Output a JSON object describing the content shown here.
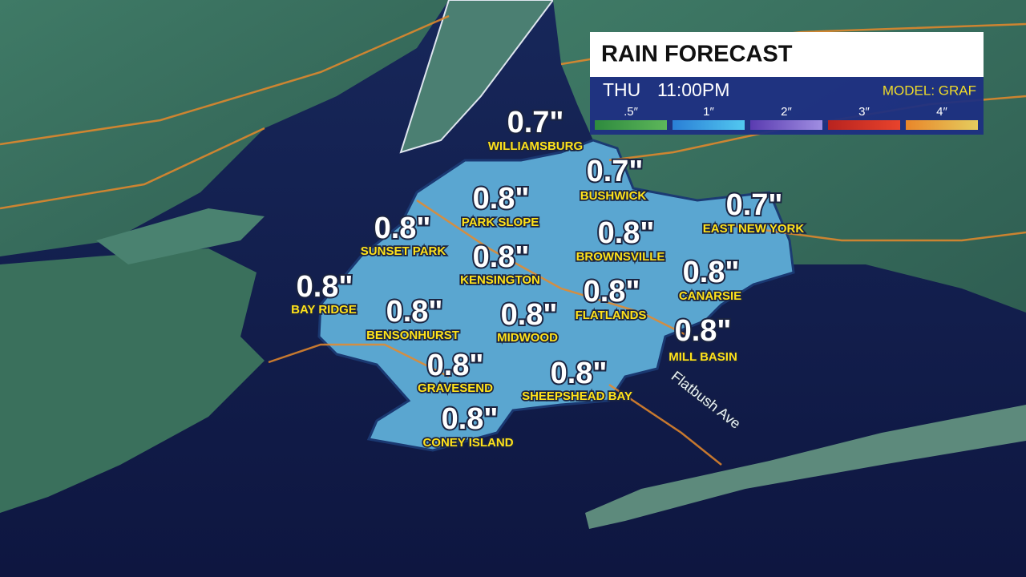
{
  "header": {
    "title": "RAIN FORECAST",
    "day": "THU",
    "time": "11:00PM",
    "model": "MODEL: GRAF"
  },
  "legend": [
    {
      "label": ".5″",
      "colors": [
        "#2e8a3e",
        "#5db75a"
      ]
    },
    {
      "label": "1″",
      "colors": [
        "#2a7fd6",
        "#52c8f0"
      ]
    },
    {
      "label": "2″",
      "colors": [
        "#5a3bb0",
        "#a08ee2"
      ]
    },
    {
      "label": "3″",
      "colors": [
        "#b8231f",
        "#e8432c"
      ]
    },
    {
      "label": "4″",
      "colors": [
        "#e8862a",
        "#e6cd5e"
      ]
    }
  ],
  "locations": [
    {
      "name": "WILLIAMSBURG",
      "amount": "0.7\""
    },
    {
      "name": "BUSHWICK",
      "amount": "0.7\""
    },
    {
      "name": "EAST NEW YORK",
      "amount": "0.7\""
    },
    {
      "name": "PARK SLOPE",
      "amount": "0.8\""
    },
    {
      "name": "SUNSET PARK",
      "amount": "0.8\""
    },
    {
      "name": "BROWNSVILLE",
      "amount": "0.8\""
    },
    {
      "name": "KENSINGTON",
      "amount": "0.8\""
    },
    {
      "name": "CANARSIE",
      "amount": "0.8\""
    },
    {
      "name": "BAY RIDGE",
      "amount": "0.8\""
    },
    {
      "name": "FLATLANDS",
      "amount": "0.8\""
    },
    {
      "name": "BENSONHURST",
      "amount": "0.8\""
    },
    {
      "name": "MIDWOOD",
      "amount": "0.8\""
    },
    {
      "name": "MILL BASIN",
      "amount": "0.8\""
    },
    {
      "name": "GRAVESEND",
      "amount": "0.8\""
    },
    {
      "name": "SHEEPSHEAD BAY",
      "amount": "0.8\""
    },
    {
      "name": "CONEY ISLAND",
      "amount": "0.8\""
    }
  ],
  "street_label": "Flatbush Ave"
}
